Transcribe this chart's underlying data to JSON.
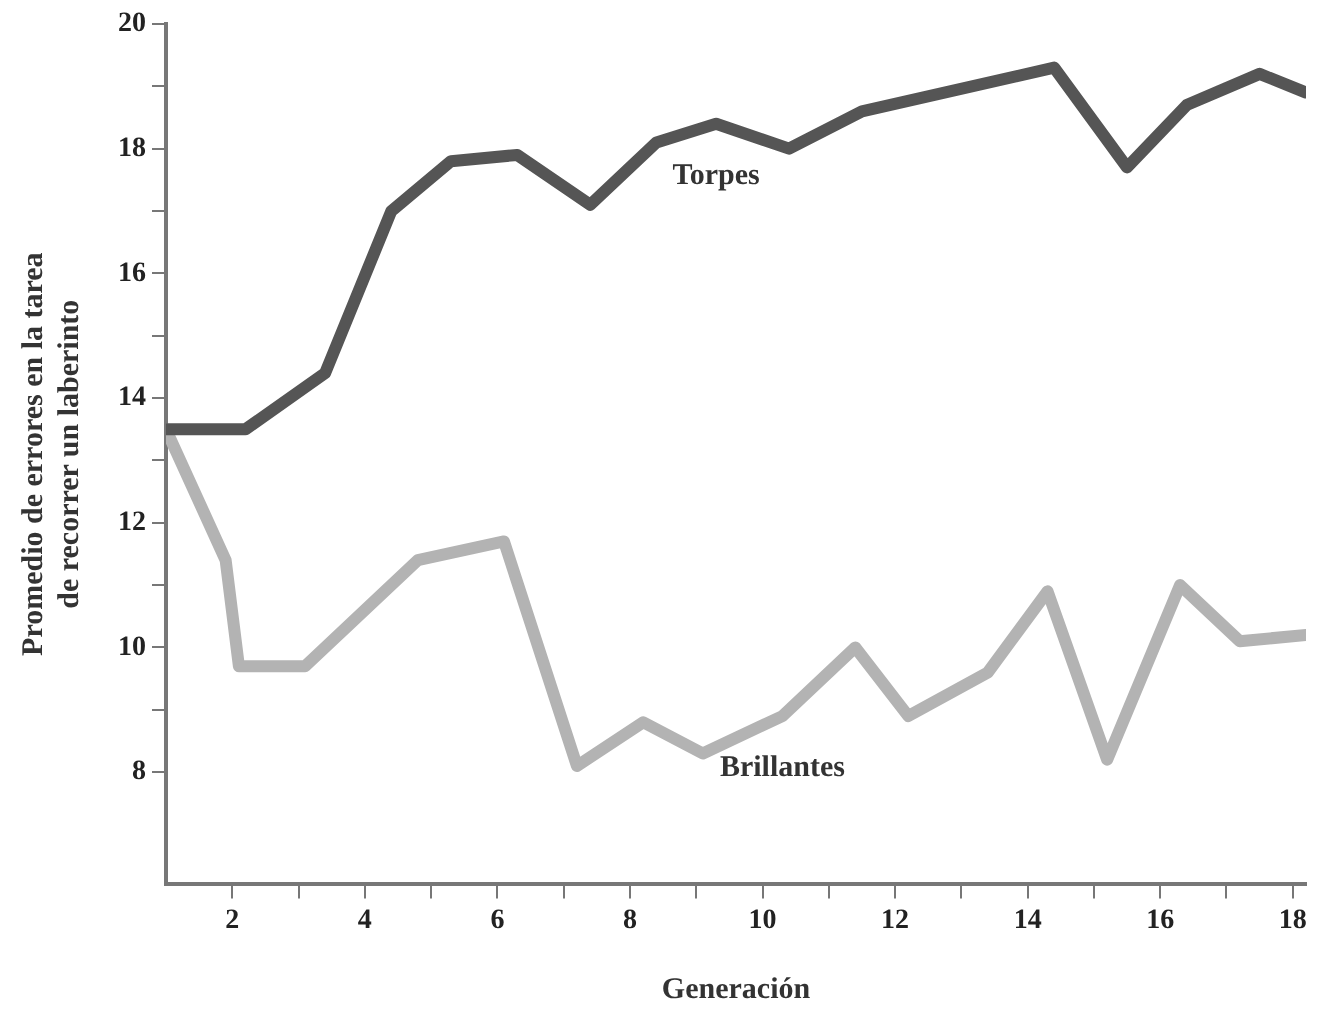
{
  "chart_data": {
    "type": "line",
    "xlabel": "Generación",
    "ylabel": "Promedio de errores en la tarea\nde recorrer un laberinto",
    "xlim": [
      1,
      18.2
    ],
    "xticks": [
      2,
      {
        "value": 3,
        "label": null
      },
      4,
      {
        "value": 5,
        "label": null
      },
      6,
      {
        "value": 7,
        "label": null
      },
      8,
      {
        "value": 9,
        "label": null
      },
      10,
      {
        "value": 11,
        "label": null
      },
      12,
      {
        "value": 13,
        "label": null
      },
      14,
      {
        "value": 15,
        "label": null
      },
      16,
      {
        "value": 17,
        "label": null
      },
      18
    ],
    "ylim": [
      6.2,
      20
    ],
    "yticks": [
      8,
      {
        "value": 9,
        "label": null
      },
      10,
      {
        "value": 11,
        "label": null
      },
      12,
      {
        "value": 13,
        "label": null
      },
      14,
      {
        "value": 15,
        "label": null
      },
      16,
      {
        "value": 17,
        "label": null
      },
      18,
      {
        "value": 19,
        "label": null
      },
      20
    ],
    "grid": false,
    "legend": false,
    "marker": "none",
    "line_style": "solid",
    "series": [
      {
        "name": "Torpes",
        "color": "#555555",
        "x": [
          1,
          2.2,
          3.4,
          4.4,
          5.3,
          6.3,
          7.4,
          8.4,
          9.3,
          10.4,
          11.5,
          14.4,
          15.5,
          16.4,
          17.5,
          18.2
        ],
        "values": [
          13.5,
          13.5,
          14.4,
          17.0,
          17.8,
          17.9,
          17.1,
          18.1,
          18.4,
          18.0,
          18.6,
          19.3,
          17.7,
          18.7,
          19.2,
          18.9
        ]
      },
      {
        "name": "Brillantes",
        "color": "#b3b3b3",
        "x": [
          1,
          1.9,
          2.1,
          3.1,
          4.8,
          6.1,
          7.2,
          8.2,
          9.1,
          10.3,
          11.4,
          12.2,
          13.4,
          14.3,
          15.2,
          16.3,
          17.2,
          18.2
        ],
        "values": [
          13.5,
          11.4,
          9.7,
          9.7,
          11.4,
          11.7,
          8.1,
          8.8,
          8.3,
          8.9,
          10.0,
          8.9,
          9.6,
          10.9,
          8.2,
          11.0,
          10.1,
          10.2
        ]
      }
    ]
  }
}
